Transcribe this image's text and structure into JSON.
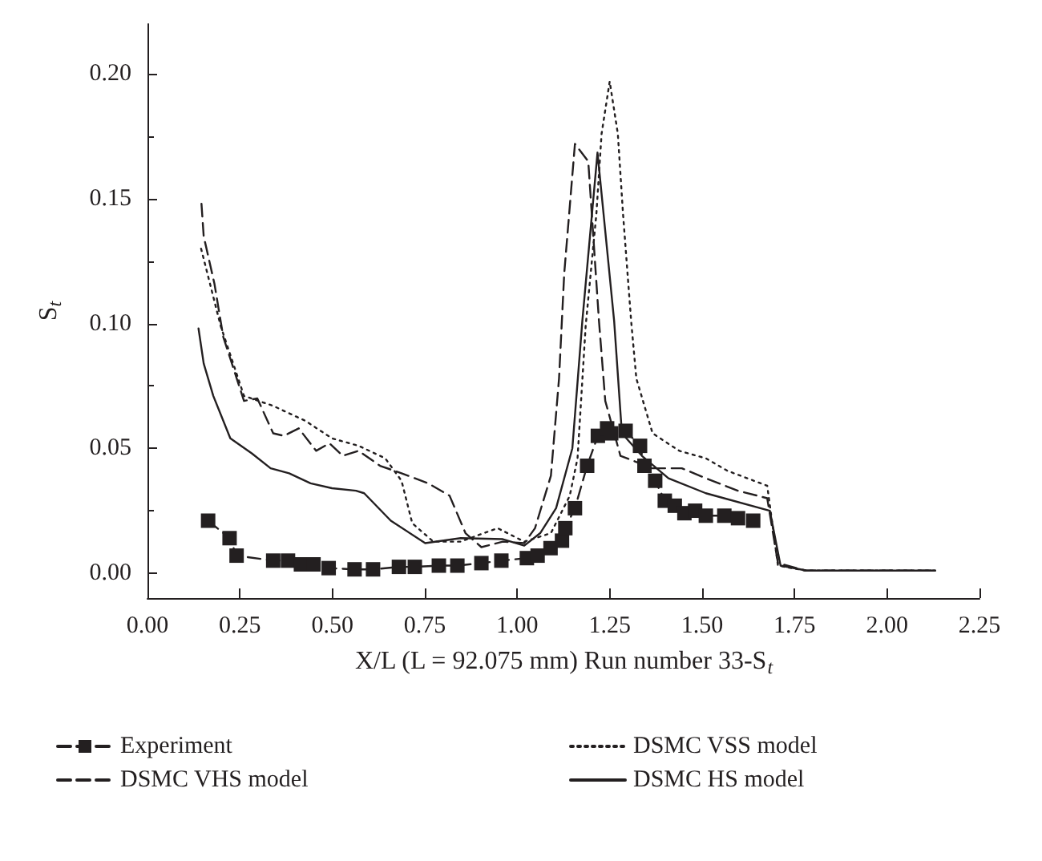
{
  "chart_data": {
    "type": "line",
    "xlabel": "X/L (L = 92.075 mm) Run number 33-S$_{t}$",
    "ylabel": "S$_{t}$",
    "xlim": [
      0,
      2.25
    ],
    "xticks": [
      {
        "value": 0,
        "label": "0.00"
      },
      {
        "value": 0.25,
        "label": "0.25"
      },
      {
        "value": 0.5,
        "label": "0.50"
      },
      {
        "value": 0.75,
        "label": "0.75"
      },
      {
        "value": 1,
        "label": "1.00"
      },
      {
        "value": 1.25,
        "label": "1.25"
      },
      {
        "value": 1.5,
        "label": "1.50"
      },
      {
        "value": 1.75,
        "label": "1.75"
      },
      {
        "value": 2,
        "label": "2.00"
      },
      {
        "value": 2.25,
        "label": "2.25"
      }
    ],
    "ylim": [
      -0.01,
      0.22
    ],
    "yticks": [
      {
        "value": 0,
        "label": "0.00"
      },
      {
        "value": 0.05,
        "label": "0.05"
      },
      {
        "value": 0.1,
        "label": "0.10"
      },
      {
        "value": 0.15,
        "label": "0.15"
      },
      {
        "value": 0.2,
        "label": "0.20"
      }
    ],
    "grid": false,
    "legend": "bottom",
    "series": [
      {
        "name": "Experiment",
        "color": "#231f20",
        "marker": "square",
        "line_style": "dashed",
        "x": [
          0.164,
          0.222,
          0.241,
          0.34,
          0.38,
          0.415,
          0.449,
          0.49,
          0.56,
          0.61,
          0.68,
          0.723,
          0.788,
          0.838,
          0.903,
          0.957,
          1.026,
          1.055,
          1.09,
          1.121,
          1.13,
          1.156,
          1.189,
          1.218,
          1.243,
          1.254,
          1.293,
          1.332,
          1.344,
          1.373,
          1.399,
          1.426,
          1.452,
          1.481,
          1.51,
          1.56,
          1.597,
          1.638
        ],
        "values": [
          0.021,
          0.014,
          0.007,
          0.005,
          0.005,
          0.0035,
          0.0035,
          0.002,
          0.0015,
          0.0015,
          0.0025,
          0.0025,
          0.003,
          0.003,
          0.004,
          0.005,
          0.006,
          0.007,
          0.01,
          0.013,
          0.018,
          0.026,
          0.043,
          0.055,
          0.058,
          0.056,
          0.057,
          0.051,
          0.043,
          0.037,
          0.029,
          0.027,
          0.024,
          0.025,
          0.023,
          0.023,
          0.022,
          0.021
        ]
      },
      {
        "name": "DSMC VSS model",
        "color": "#231f20",
        "marker": "none",
        "line_style": "dotted",
        "x": [
          0.145,
          0.198,
          0.261,
          0.34,
          0.427,
          0.499,
          0.571,
          0.643,
          0.687,
          0.716,
          0.773,
          0.846,
          0.947,
          1.019,
          1.091,
          1.142,
          1.163,
          1.185,
          1.214,
          1.228,
          1.25,
          1.272,
          1.286,
          1.308,
          1.322,
          1.366,
          1.438,
          1.51,
          1.568,
          1.676,
          1.705,
          1.78,
          2.13
        ],
        "values": [
          0.13,
          0.099,
          0.071,
          0.067,
          0.061,
          0.054,
          0.051,
          0.046,
          0.037,
          0.02,
          0.0126,
          0.0126,
          0.018,
          0.0126,
          0.016,
          0.031,
          0.046,
          0.099,
          0.144,
          0.176,
          0.197,
          0.176,
          0.144,
          0.101,
          0.078,
          0.056,
          0.049,
          0.046,
          0.041,
          0.035,
          0.003,
          0.001,
          0.001
        ]
      },
      {
        "name": "DSMC VHS model",
        "color": "#231f20",
        "marker": "none",
        "line_style": "dashed",
        "x": [
          0.146,
          0.152,
          0.181,
          0.205,
          0.261,
          0.297,
          0.34,
          0.369,
          0.409,
          0.456,
          0.492,
          0.528,
          0.571,
          0.629,
          0.687,
          0.759,
          0.817,
          0.86,
          0.903,
          0.961,
          1.019,
          1.048,
          1.091,
          1.113,
          1.127,
          1.156,
          1.192,
          1.221,
          1.238,
          1.279,
          1.366,
          1.445,
          1.51,
          1.597,
          1.676,
          1.705,
          1.78,
          2.13
        ],
        "values": [
          0.148,
          0.135,
          0.116,
          0.0946,
          0.069,
          0.07,
          0.056,
          0.055,
          0.058,
          0.049,
          0.052,
          0.047,
          0.049,
          0.043,
          0.04,
          0.036,
          0.031,
          0.016,
          0.0104,
          0.0126,
          0.012,
          0.018,
          0.039,
          0.078,
          0.12,
          0.172,
          0.165,
          0.101,
          0.069,
          0.047,
          0.042,
          0.042,
          0.038,
          0.033,
          0.03,
          0.004,
          0.001,
          0.001
        ]
      },
      {
        "name": "DSMC HS model",
        "color": "#231f20",
        "marker": "none",
        "line_style": "solid",
        "x": [
          0.138,
          0.152,
          0.178,
          0.224,
          0.282,
          0.333,
          0.383,
          0.441,
          0.499,
          0.564,
          0.586,
          0.658,
          0.751,
          0.847,
          0.961,
          1.019,
          1.062,
          1.105,
          1.149,
          1.176,
          1.217,
          1.262,
          1.283,
          1.337,
          1.409,
          1.51,
          1.683,
          1.712,
          1.783,
          2.13
        ],
        "values": [
          0.098,
          0.084,
          0.071,
          0.054,
          0.048,
          0.042,
          0.04,
          0.036,
          0.034,
          0.033,
          0.032,
          0.021,
          0.012,
          0.014,
          0.0136,
          0.011,
          0.016,
          0.026,
          0.05,
          0.101,
          0.1685,
          0.101,
          0.056,
          0.047,
          0.038,
          0.032,
          0.025,
          0.003,
          0.001,
          0.001
        ]
      }
    ]
  }
}
